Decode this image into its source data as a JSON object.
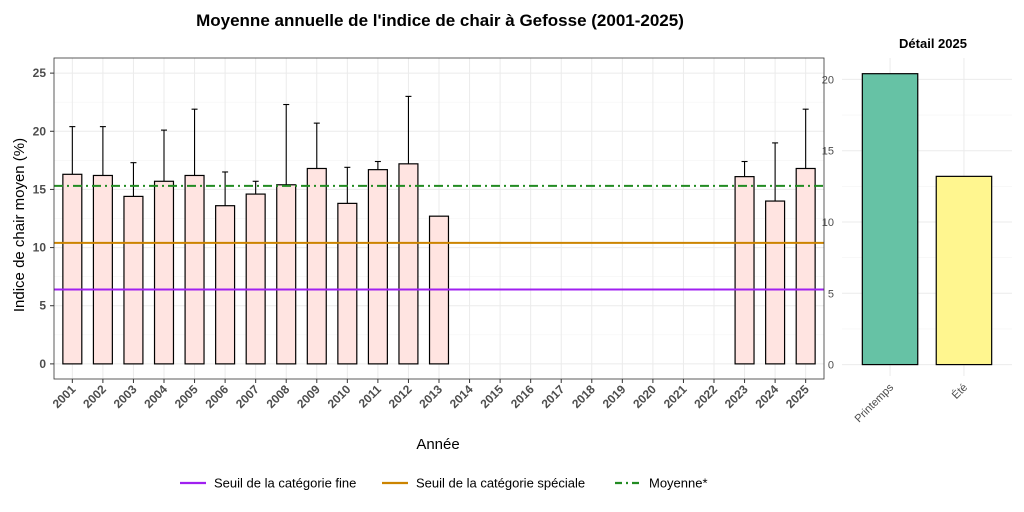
{
  "chart_data": [
    {
      "type": "bar",
      "title": "Moyenne annuelle de l'indice de chair à Gefosse (2001-2025)",
      "xlabel": "Année",
      "ylabel": "Indice de chair moyen (%)",
      "ylim": [
        0,
        25
      ],
      "yticks": [
        0,
        5,
        10,
        15,
        20,
        25
      ],
      "grid": true,
      "categories": [
        "2001",
        "2002",
        "2003",
        "2004",
        "2005",
        "2006",
        "2007",
        "2008",
        "2009",
        "2010",
        "2011",
        "2012",
        "2013",
        "2014",
        "2015",
        "2016",
        "2017",
        "2018",
        "2019",
        "2020",
        "2021",
        "2022",
        "2023",
        "2024",
        "2025"
      ],
      "values": [
        16.3,
        16.2,
        14.4,
        15.7,
        16.2,
        13.6,
        14.6,
        15.4,
        16.8,
        13.8,
        16.7,
        17.2,
        12.7,
        null,
        null,
        null,
        null,
        null,
        null,
        null,
        null,
        null,
        16.1,
        14.0,
        16.8
      ],
      "error_upper": [
        20.4,
        20.4,
        17.3,
        20.1,
        21.9,
        16.5,
        15.7,
        22.3,
        20.7,
        16.9,
        17.4,
        23.0,
        null,
        null,
        null,
        null,
        null,
        null,
        null,
        null,
        null,
        null,
        17.4,
        19.0,
        21.9
      ],
      "bar_fill": "#ffe4e1",
      "reference_lines": [
        {
          "name": "Seuil de la catégorie fine",
          "value": 6.4,
          "color": "#a020f0",
          "style": "solid"
        },
        {
          "name": "Seuil de la catégorie spéciale",
          "value": 10.4,
          "color": "#cc8400",
          "style": "solid"
        },
        {
          "name": "Moyenne*",
          "value": 15.3,
          "color": "#228b22",
          "style": "dashdot"
        }
      ],
      "legend_position": "bottom"
    },
    {
      "type": "bar",
      "title": "Détail 2025",
      "categories": [
        "Printemps",
        "Été"
      ],
      "values": [
        20.4,
        13.2
      ],
      "colors": [
        "#66c2a5",
        "#fff68f"
      ],
      "ylim": [
        0,
        22
      ],
      "yticks": [
        0,
        5,
        10,
        15,
        20
      ],
      "grid": true
    }
  ]
}
